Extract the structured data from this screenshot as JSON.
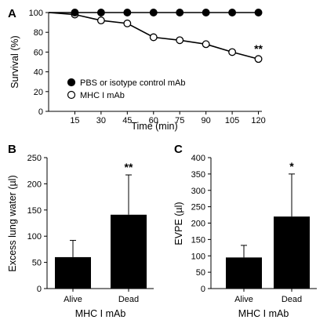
{
  "chart_data": [
    {
      "panel": "A",
      "type": "line",
      "xlabel": "Time (min)",
      "ylabel": "Survival (%)",
      "x": [
        0,
        15,
        30,
        45,
        60,
        75,
        90,
        105,
        120
      ],
      "x_ticks": [
        "15",
        "30",
        "45",
        "60",
        "75",
        "90",
        "105",
        "120"
      ],
      "xlim": [
        0,
        122
      ],
      "ylim": [
        0,
        100
      ],
      "y_ticks": [
        "0",
        "20",
        "40",
        "60",
        "80",
        "100"
      ],
      "legend_placement": "bottom-left",
      "grid": false,
      "series": [
        {
          "name": "PBS or isotype control mAb",
          "marker": "filled-circle",
          "values": [
            100,
            100,
            100,
            100,
            100,
            100,
            100,
            100,
            100
          ]
        },
        {
          "name": "MHC I mAb",
          "marker": "open-circle",
          "values": [
            100,
            98,
            92,
            89,
            75,
            72,
            68,
            60,
            53
          ]
        }
      ],
      "annotations": [
        {
          "text": "**",
          "x": 120,
          "series": "MHC I mAb"
        }
      ]
    },
    {
      "panel": "B",
      "type": "bar",
      "categories": [
        "Alive",
        "Dead"
      ],
      "values": [
        60,
        141
      ],
      "error_upper": [
        92,
        217
      ],
      "xlabel": "MHC I mAb",
      "ylabel": "Excess lung water (µl)",
      "ylim": [
        0,
        250
      ],
      "y_ticks": [
        "0",
        "50",
        "100",
        "150",
        "200",
        "250"
      ],
      "bar_color": "#000000",
      "annotations": [
        {
          "text": "**",
          "category": "Dead"
        }
      ]
    },
    {
      "panel": "C",
      "type": "bar",
      "categories": [
        "Alive",
        "Dead"
      ],
      "values": [
        95,
        220
      ],
      "error_upper": [
        132,
        350
      ],
      "xlabel": "MHC I mAb",
      "ylabel": "EVPE (µl)",
      "ylim": [
        0,
        400
      ],
      "y_ticks": [
        "0",
        "50",
        "100",
        "150",
        "200",
        "250",
        "300",
        "350",
        "400"
      ],
      "bar_color": "#000000",
      "annotations": [
        {
          "text": "*",
          "category": "Dead"
        }
      ]
    }
  ]
}
